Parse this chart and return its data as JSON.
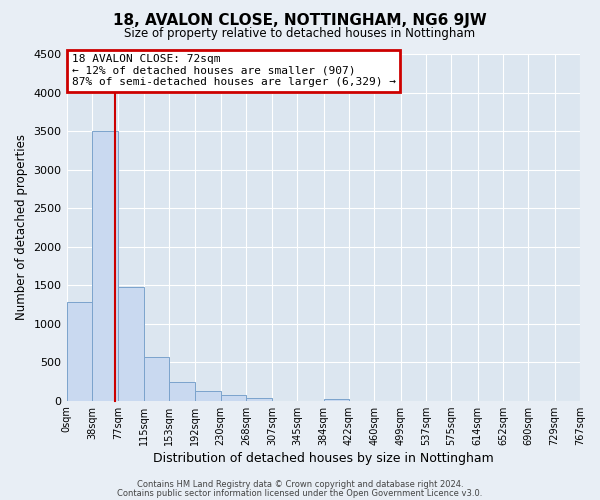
{
  "title": "18, AVALON CLOSE, NOTTINGHAM, NG6 9JW",
  "subtitle": "Size of property relative to detached houses in Nottingham",
  "xlabel": "Distribution of detached houses by size in Nottingham",
  "ylabel": "Number of detached properties",
  "bar_edges": [
    0,
    38,
    77,
    115,
    153,
    192,
    230,
    268,
    307,
    345,
    384,
    422,
    460,
    499,
    537,
    575,
    614,
    652,
    690,
    729,
    767
  ],
  "bar_heights": [
    1280,
    3500,
    1470,
    570,
    240,
    130,
    75,
    30,
    0,
    0,
    20,
    0,
    0,
    0,
    0,
    0,
    0,
    0,
    0,
    0
  ],
  "bar_color": "#c9d9f0",
  "bar_edgecolor": "#7ba3cc",
  "property_line_x": 72,
  "property_line_color": "#cc0000",
  "ylim": [
    0,
    4500
  ],
  "yticks": [
    0,
    500,
    1000,
    1500,
    2000,
    2500,
    3000,
    3500,
    4000,
    4500
  ],
  "xtick_labels": [
    "0sqm",
    "38sqm",
    "77sqm",
    "115sqm",
    "153sqm",
    "192sqm",
    "230sqm",
    "268sqm",
    "307sqm",
    "345sqm",
    "384sqm",
    "422sqm",
    "460sqm",
    "499sqm",
    "537sqm",
    "575sqm",
    "614sqm",
    "652sqm",
    "690sqm",
    "729sqm",
    "767sqm"
  ],
  "annotation_title": "18 AVALON CLOSE: 72sqm",
  "annotation_line1": "← 12% of detached houses are smaller (907)",
  "annotation_line2": "87% of semi-detached houses are larger (6,329) →",
  "annotation_box_color": "#cc0000",
  "footer1": "Contains HM Land Registry data © Crown copyright and database right 2024.",
  "footer2": "Contains public sector information licensed under the Open Government Licence v3.0.",
  "bg_color": "#e8eef5",
  "plot_bg_color": "#dce6f0"
}
